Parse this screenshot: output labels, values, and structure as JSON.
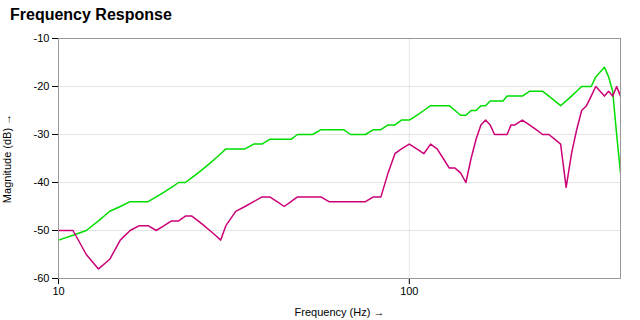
{
  "chart_data": {
    "type": "line",
    "title": "Frequency Response",
    "x_label": "Frequency (Hz)",
    "y_label": "Magnitude (dB)",
    "log": "x",
    "grid": true,
    "xlim": [
      10,
      400
    ],
    "xticks": [
      10,
      100
    ],
    "ylim": [
      -60,
      -10
    ],
    "yticks": [
      -60,
      -50,
      -40,
      -30,
      -20,
      -10
    ],
    "x": [
      10,
      11,
      12,
      13,
      14,
      15,
      16,
      17,
      18,
      19,
      20,
      21,
      22,
      23,
      24,
      25,
      26,
      27,
      28,
      29,
      30,
      32,
      34,
      36,
      38,
      40,
      42,
      44,
      46,
      48,
      50,
      53,
      56,
      59,
      62,
      65,
      68,
      71,
      75,
      79,
      83,
      87,
      91,
      95,
      100,
      105,
      110,
      115,
      120,
      125,
      130,
      135,
      140,
      145,
      150,
      155,
      160,
      165,
      170,
      175,
      180,
      185,
      190,
      195,
      200,
      210,
      220,
      230,
      240,
      250,
      260,
      270,
      280,
      290,
      300,
      310,
      320,
      330,
      340,
      350,
      360,
      370,
      380,
      390,
      400
    ],
    "series": [
      {
        "color": "#00dd00",
        "values": [
          -52,
          -51,
          -50,
          -48,
          -46,
          -45,
          -44,
          -44,
          -44,
          -43,
          -42,
          -41,
          -40,
          -40,
          -39,
          -38,
          -37,
          -36,
          -35,
          -34,
          -33,
          -33,
          -33,
          -32,
          -32,
          -31,
          -31,
          -31,
          -31,
          -30,
          -30,
          -30,
          -29,
          -29,
          -29,
          -29,
          -30,
          -30,
          -30,
          -29,
          -29,
          -28,
          -28,
          -27,
          -27,
          -26,
          -25,
          -24,
          -24,
          -24,
          -24,
          -25,
          -26,
          -26,
          -25,
          -25,
          -24,
          -24,
          -23,
          -23,
          -23,
          -23,
          -22,
          -22,
          -22,
          -22,
          -21,
          -21,
          -21,
          -22,
          -23,
          -24,
          -23,
          -22,
          -21,
          -20,
          -20,
          -20,
          -18,
          -17,
          -16,
          -18,
          -21,
          -30,
          -38
        ]
      },
      {
        "color": "#cc0077",
        "values": [
          -50,
          -50,
          -55,
          -58,
          -56,
          -52,
          -50,
          -49,
          -49,
          -50,
          -49,
          -48,
          -48,
          -47,
          -47,
          -48,
          -49,
          -50,
          -51,
          -52,
          -49,
          -46,
          -45,
          -44,
          -43,
          -43,
          -44,
          -45,
          -44,
          -43,
          -43,
          -43,
          -43,
          -44,
          -44,
          -44,
          -44,
          -44,
          -44,
          -43,
          -43,
          -38,
          -34,
          -33,
          -32,
          -33,
          -34,
          -32,
          -33,
          -35,
          -37,
          -37,
          -38,
          -40,
          -35,
          -31,
          -28,
          -27,
          -28,
          -30,
          -30,
          -30,
          -30,
          -28,
          -28,
          -27,
          -28,
          -29,
          -30,
          -30,
          -31,
          -32,
          -41,
          -34,
          -29,
          -25,
          -24,
          -22,
          -20,
          -21,
          -22,
          -21,
          -22,
          -20,
          -22
        ]
      }
    ]
  }
}
